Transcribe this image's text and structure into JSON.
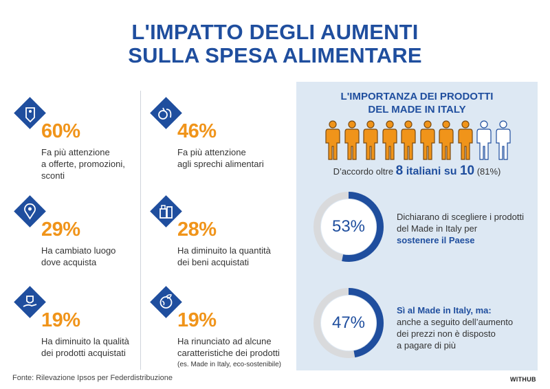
{
  "title_line1": "L'IMPATTO DEGLI AUMENTI",
  "title_line2": "SULLA SPESA ALIMENTARE",
  "colors": {
    "brand_blue": "#1f4e9e",
    "orange": "#f0941a",
    "panel_bg": "#dde8f3",
    "ring_grey": "#d9dadc"
  },
  "stats": [
    {
      "value": "60%",
      "desc": [
        "Fa più attenzione",
        "a offerte, promozioni,",
        "sconti"
      ],
      "icon": "price-tag-icon"
    },
    {
      "value": "46%",
      "desc": [
        "Fa più attenzione",
        "agli sprechi alimentari"
      ],
      "icon": "food-waste-icon"
    },
    {
      "value": "29%",
      "desc": [
        "Ha cambiato luogo",
        "dove acquista"
      ],
      "icon": "location-pin-icon"
    },
    {
      "value": "28%",
      "desc": [
        "Ha diminuito la quantità",
        "dei beni acquistati"
      ],
      "icon": "groceries-icon"
    },
    {
      "value": "19%",
      "desc": [
        "Ha diminuito la qualità",
        "dei prodotti acquistati"
      ],
      "icon": "quality-hand-icon"
    },
    {
      "value": "19%",
      "desc": [
        "Ha rinunciato ad alcune",
        "caratteristiche dei prodotti"
      ],
      "note": "(es. Made in Italy, eco-sostenibile)",
      "icon": "eco-globe-icon"
    }
  ],
  "panel": {
    "title_line1": "L'IMPORTANZA DEI PRODOTTI",
    "title_line2": "DEL MADE IN ITALY",
    "agree_prefix": "D’accordo oltre ",
    "agree_bold1": "8",
    "agree_mid": " italiani su ",
    "agree_bold2": "10",
    "agree_suffix": " (81%)",
    "people_total": 10,
    "people_filled": 8
  },
  "chart_data": {
    "type": "pie",
    "series": [
      {
        "value": 53,
        "label": "53%",
        "text_plain": "Dichiarano di scegliere i prodotti del Made in Italy per",
        "text_bold": "sostenere il Paese"
      },
      {
        "value": 47,
        "label": "47%",
        "text_bold": "Sì al Made in Italy, ma:",
        "text_plain": "anche a seguito dell’aumento dei prezzi non è disposto a pagare di più"
      }
    ]
  },
  "donut_texts": {
    "d1_line1": "Dichiarano di scegliere i prodotti",
    "d1_line2": "del Made in Italy per",
    "d1_line3": "sostenere il Paese",
    "d2_line1": "Sì al Made in Italy, ma:",
    "d2_line2": "anche a seguito dell’aumento",
    "d2_line3": "dei prezzi non è disposto",
    "d2_line4": "a pagare di più"
  },
  "source": "Fonte: Rilevazione Ipsos per Federdistribuzione",
  "brand": "WITHUB"
}
